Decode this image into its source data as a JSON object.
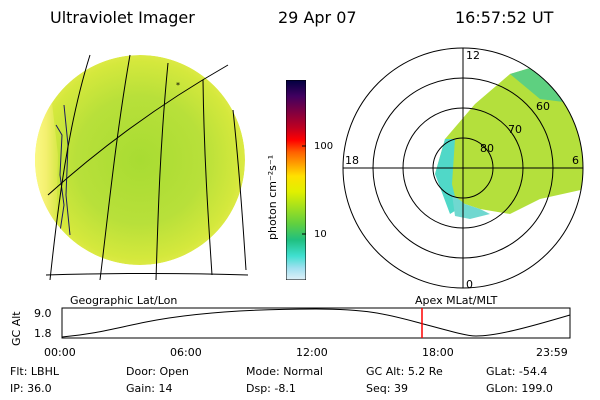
{
  "header": {
    "title": "Ultraviolet Imager",
    "date": "29 Apr 07",
    "time": "16:57:52 UT"
  },
  "colorbar": {
    "unit_label": "photon cm⁻²s⁻¹",
    "ticks": [
      "100",
      "10"
    ],
    "colors": [
      "#000040",
      "#400060",
      "#800040",
      "#c00020",
      "#ff0000",
      "#ff6000",
      "#ffa000",
      "#ffe000",
      "#e0f000",
      "#a0e020",
      "#60d040",
      "#20c080",
      "#40e0d0",
      "#a0e0f0",
      "#e0f0f8"
    ]
  },
  "polar": {
    "clock_labels": {
      "top": "12",
      "left": "18",
      "right": "6",
      "bottom": "0"
    },
    "lat_labels": [
      "80",
      "70",
      "60"
    ]
  },
  "timeline": {
    "left_caption": "Geographic Lat/Lon",
    "right_caption": "Apex MLat/MLT",
    "y_axis_label": "GC Alt",
    "y_ticks": [
      "9.0",
      "1.8"
    ],
    "x_ticks": [
      "00:00",
      "06:00",
      "12:00",
      "18:00",
      "23:59"
    ],
    "marker_time": "16:57:52",
    "marker_color": "#ff0000"
  },
  "status": {
    "row1": [
      {
        "label": "Flt:",
        "value": "LBHL"
      },
      {
        "label": "Door:",
        "value": "Open"
      },
      {
        "label": "Mode:",
        "value": "Normal"
      },
      {
        "label": "GC Alt:",
        "value": "5.2 Re"
      },
      {
        "label": "GLat:",
        "value": "-54.4"
      }
    ],
    "row2": [
      {
        "label": "IP:",
        "value": "36.0"
      },
      {
        "label": "Gain:",
        "value": "14"
      },
      {
        "label": "Dsp:",
        "value": "-8.1"
      },
      {
        "label": "Seq:",
        "value": "39"
      },
      {
        "label": "GLon:",
        "value": "199.0"
      }
    ]
  }
}
